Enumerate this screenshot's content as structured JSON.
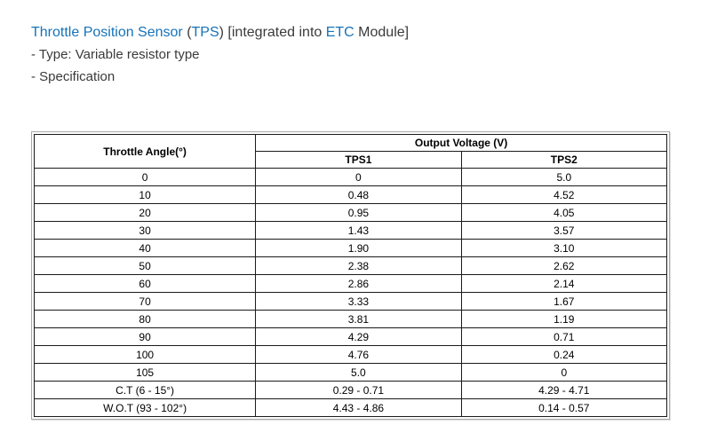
{
  "colors": {
    "link_blue": "#1673b8",
    "body_text": "#3a3a3a",
    "table_border": "#1a1a1a",
    "outer_frame": "#a9a9a9"
  },
  "title": {
    "segments": [
      {
        "text": "Throttle Position Sensor",
        "style": "link"
      },
      {
        "text": " (",
        "style": "plain"
      },
      {
        "text": "TPS",
        "style": "link"
      },
      {
        "text": ") [integrated into ",
        "style": "plain"
      },
      {
        "text": "ETC",
        "style": "link"
      },
      {
        "text": " Module]",
        "style": "plain"
      }
    ]
  },
  "lines": {
    "type": "- Type: Variable resistor type",
    "specification": "- Specification"
  },
  "table": {
    "header": {
      "angle": "Throttle Angle(°)",
      "group": "Output Voltage (V)",
      "tps1": "TPS1",
      "tps2": "TPS2"
    },
    "rows": [
      [
        "0",
        "0",
        "5.0"
      ],
      [
        "10",
        "0.48",
        "4.52"
      ],
      [
        "20",
        "0.95",
        "4.05"
      ],
      [
        "30",
        "1.43",
        "3.57"
      ],
      [
        "40",
        "1.90",
        "3.10"
      ],
      [
        "50",
        "2.38",
        "2.62"
      ],
      [
        "60",
        "2.86",
        "2.14"
      ],
      [
        "70",
        "3.33",
        "1.67"
      ],
      [
        "80",
        "3.81",
        "1.19"
      ],
      [
        "90",
        "4.29",
        "0.71"
      ],
      [
        "100",
        "4.76",
        "0.24"
      ],
      [
        "105",
        "5.0",
        "0"
      ],
      [
        "C.T (6 - 15°)",
        "0.29 - 0.71",
        "4.29 - 4.71"
      ],
      [
        "W.O.T (93 - 102°)",
        "4.43 - 4.86",
        "0.14 - 0.57"
      ]
    ]
  }
}
